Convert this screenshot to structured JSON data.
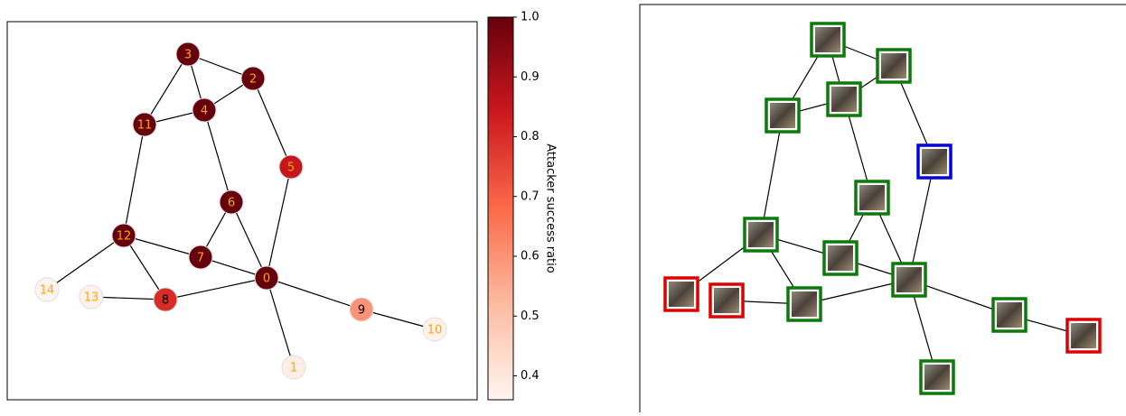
{
  "graph": {
    "nodes": [
      {
        "label": "0",
        "value": 1.0
      },
      {
        "label": "1",
        "value": 0.38
      },
      {
        "label": "2",
        "value": 1.0
      },
      {
        "label": "3",
        "value": 1.0
      },
      {
        "label": "4",
        "value": 1.0
      },
      {
        "label": "5",
        "value": 0.85
      },
      {
        "label": "6",
        "value": 1.0
      },
      {
        "label": "7",
        "value": 1.0
      },
      {
        "label": "8",
        "value": 0.8
      },
      {
        "label": "9",
        "value": 0.6
      },
      {
        "label": "10",
        "value": 0.37
      },
      {
        "label": "11",
        "value": 1.0
      },
      {
        "label": "12",
        "value": 1.0
      },
      {
        "label": "13",
        "value": 0.37
      },
      {
        "label": "14",
        "value": 0.36
      }
    ],
    "colorbar": {
      "label": "Attacker success ratio",
      "lim": [
        0.36,
        1.0
      ],
      "ticks": [
        0.4,
        0.5,
        0.6,
        0.7,
        0.8,
        0.9,
        {
          "value": 1.0,
          "label": "1.0"
        }
      ]
    }
  }
}
